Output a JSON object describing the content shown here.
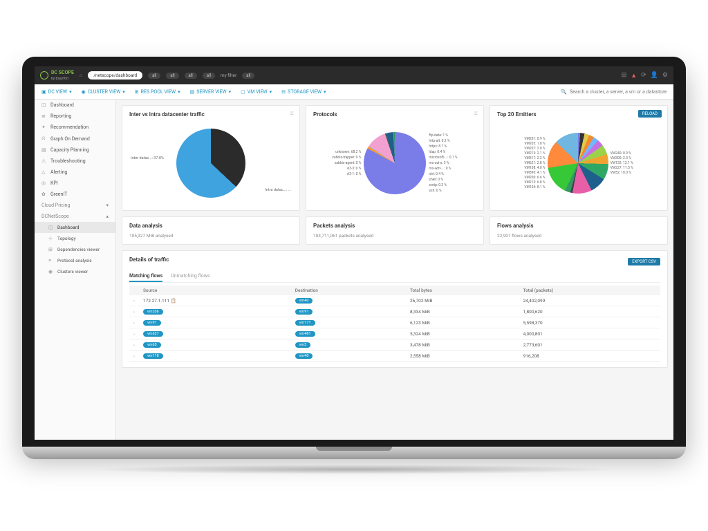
{
  "app": {
    "name": "DC SCOPE",
    "vendor": "by EasyVirt"
  },
  "topbar": {
    "breadcrumb": "/netscope/dashboard",
    "pills": [
      "all",
      "all",
      "all",
      "all"
    ],
    "filter_label": "my filter",
    "filter_value": "all"
  },
  "viewbar": {
    "items": [
      "DC VIEW",
      "CLUSTER VIEW",
      "RES.POOL VIEW",
      "SERVER VIEW",
      "VM VIEW",
      "STORAGE VIEW"
    ],
    "search_placeholder": "Search a cluster, a server, a vm or a datastore"
  },
  "sidebar": {
    "items": [
      {
        "icon": "◫",
        "label": "Dashboard"
      },
      {
        "icon": "≣",
        "label": "Reporting"
      },
      {
        "icon": "✦",
        "label": "Recommendation"
      },
      {
        "icon": "⎌",
        "label": "Graph On Demand"
      },
      {
        "icon": "▤",
        "label": "Capacity Planning"
      },
      {
        "icon": "⚠",
        "label": "Troubleshooting"
      },
      {
        "icon": "△",
        "label": "Alerting"
      },
      {
        "icon": "◎",
        "label": "KPI"
      },
      {
        "icon": "✿",
        "label": "GreenIT"
      }
    ],
    "sections": [
      {
        "label": "Cloud Pricing",
        "open": false
      },
      {
        "label": "DCNetScope",
        "open": true,
        "children": [
          {
            "icon": "◫",
            "label": "Dashboard",
            "active": true
          },
          {
            "icon": "⊹",
            "label": "Topology"
          },
          {
            "icon": "⊞",
            "label": "Dependencies viewer"
          },
          {
            "icon": "≡",
            "label": "Protocol analysis"
          },
          {
            "icon": "◉",
            "label": "Clusters viewer"
          }
        ]
      }
    ]
  },
  "chart_inter_intra": {
    "title": "Inter vs intra datacenter traffic",
    "type": "pie",
    "slices": [
      {
        "label": "Inter datac...",
        "value": 37.0,
        "color": "#2b2b2b"
      },
      {
        "label": "Intra datac...",
        "value": 63.0,
        "color": "#3fa3e0"
      }
    ],
    "label_fontsize": 5.5,
    "background": "#ffffff"
  },
  "chart_protocols": {
    "title": "Protocols",
    "type": "pie",
    "slices": [
      {
        "label": "unknown",
        "value": 68.2,
        "color": "#7a7de8"
      },
      {
        "label": "zabbix-trapper",
        "value": 0.0,
        "color": "#7a7de8"
      },
      {
        "label": "zabbix-agent",
        "value": 0.0,
        "color": "#333333"
      },
      {
        "label": "vl3-3",
        "value": 0.0,
        "color": "#2fa866"
      },
      {
        "label": "vl3-1",
        "value": 0.0,
        "color": "#b0c95b"
      },
      {
        "label": "ftp-data",
        "value": 1.0,
        "color": "#ff9933"
      },
      {
        "label": "http-alt",
        "value": 0.2,
        "color": "#7cc7ff"
      },
      {
        "label": "https",
        "value": 8.7,
        "color": "#f2a0d0"
      },
      {
        "label": "ldap",
        "value": 0.4,
        "color": "#444444"
      },
      {
        "label": "microsoft-...",
        "value": 0.1,
        "color": "#2fa866"
      },
      {
        "label": "ms-sql-s",
        "value": 3.0,
        "color": "#1f5f8b"
      },
      {
        "label": "ms-wbt-...",
        "value": 0.0,
        "color": "#f58a2c"
      },
      {
        "label": "nbt",
        "value": 0.4,
        "color": "#7a7de8"
      },
      {
        "label": "shell",
        "value": 0.0,
        "color": "#c672e0"
      },
      {
        "label": "smtp",
        "value": 0.3,
        "color": "#339966"
      },
      {
        "label": "ssh",
        "value": 0.0,
        "color": "#555555"
      }
    ],
    "background": "#ffffff"
  },
  "chart_emitters": {
    "title": "Top 20 Emitters",
    "reload_label": "RELOAD",
    "type": "pie",
    "slices": [
      {
        "label": "VM201: 0.9 %",
        "value": 0.9,
        "color": "#7a7de8"
      },
      {
        "label": "VM203: 1.8 %",
        "value": 1.8,
        "color": "#333333"
      },
      {
        "label": "VM207: 2.0 %",
        "value": 2.0,
        "color": "#e0c94e"
      },
      {
        "label": "VM213: 2.1 %",
        "value": 2.1,
        "color": "#f58a2c"
      },
      {
        "label": "VM317: 2.2 %",
        "value": 2.2,
        "color": "#72b6ff"
      },
      {
        "label": "VM621: 2.8 %",
        "value": 2.8,
        "color": "#c672e0"
      },
      {
        "label": "VM108: 4.0 %",
        "value": 4.0,
        "color": "#9bd24a"
      },
      {
        "label": "VM390: 4.1 %",
        "value": 4.1,
        "color": "#f0a330"
      },
      {
        "label": "VM200: 6.6 %",
        "value": 6.6,
        "color": "#2fa866"
      },
      {
        "label": "VM213: 6.8 %",
        "value": 6.8,
        "color": "#1f5f8b"
      },
      {
        "label": "VM104: 8.1 %",
        "value": 8.1,
        "color": "#e85fa8"
      },
      {
        "label": "VM240: 0.9 %",
        "value": 0.9,
        "color": "#444444"
      },
      {
        "label": "VM300: 2.3 %",
        "value": 2.3,
        "color": "#339966"
      },
      {
        "label": "VM132: 12.1 %",
        "value": 12.1,
        "color": "#37c837"
      },
      {
        "label": "VM227: 11.5 %",
        "value": 11.5,
        "color": "#ff8a3c"
      },
      {
        "label": "VM52: 10.0 %",
        "value": 10.0,
        "color": "#6fb6e0"
      }
    ],
    "background": "#ffffff"
  },
  "analysis": {
    "data": {
      "title": "Data analysis",
      "sub": "105,327 MiB analysed"
    },
    "packets": {
      "title": "Packets analysis",
      "sub": "103,711,061 packets analysed"
    },
    "flows": {
      "title": "Flows analysis",
      "sub": "22,901 flows analysed"
    }
  },
  "details": {
    "title": "Details of traffic",
    "export_label": "EXPORT CSV",
    "tabs": [
      "Matching flows",
      "Unmatching flows"
    ],
    "active_tab": 0,
    "columns": [
      "Source",
      "Destination",
      "Total bytes",
      "Total (packets)"
    ],
    "rows": [
      {
        "src_text": "172.27.1.111",
        "src_chip": false,
        "dst": "vm40",
        "bytes": "26,702 MiB",
        "packets": "24,402,099"
      },
      {
        "src_text": "vm206",
        "src_chip": true,
        "dst": "vm91",
        "bytes": "8,334 MiB",
        "packets": "1,800,620"
      },
      {
        "src_text": "vm91",
        "src_chip": true,
        "dst": "vm171",
        "bytes": "6,123 MiB",
        "packets": "5,598,370"
      },
      {
        "src_text": "vm627",
        "src_chip": true,
        "dst": "vm481",
        "bytes": "5,324 MiB",
        "packets": "4,000,801"
      },
      {
        "src_text": "vm65",
        "src_chip": true,
        "dst": "vm3",
        "bytes": "3,478 MiB",
        "packets": "2,773,601"
      },
      {
        "src_text": "vm118",
        "src_chip": true,
        "dst": "vm40",
        "bytes": "2,558 MiB",
        "packets": "916,208"
      }
    ]
  },
  "colors": {
    "accent": "#2196c4",
    "bg": "#f5f5f5",
    "card_border": "#e5e5e5"
  }
}
